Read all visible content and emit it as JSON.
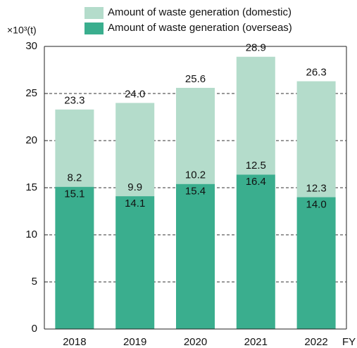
{
  "chart_data": {
    "type": "stacked_bar",
    "y_axis_label": "×10³(t)",
    "x_axis_label": "FY",
    "categories": [
      "2018",
      "2019",
      "2020",
      "2021",
      "2022"
    ],
    "series": [
      {
        "name": "Amount of waste generation (overseas)",
        "color": "#3aae8e",
        "values": [
          15.1,
          14.1,
          15.4,
          16.4,
          14.0
        ],
        "value_labels": [
          "15.1",
          "14.1",
          "15.4",
          "16.4",
          "14.0"
        ]
      },
      {
        "name": "Amount of waste generation (domestic)",
        "color": "#b4dccb",
        "values": [
          8.2,
          9.9,
          10.2,
          12.5,
          12.3
        ],
        "value_labels": [
          "8.2",
          "9.9",
          "10.2",
          "12.5",
          "12.3"
        ]
      }
    ],
    "totals": [
      23.3,
      24.0,
      25.6,
      28.9,
      26.3
    ],
    "total_labels": [
      "23.3",
      "24.0",
      "25.6",
      "28.9",
      "26.3"
    ],
    "ylim": [
      0,
      30
    ],
    "yticks": [
      0,
      5,
      10,
      15,
      20,
      25,
      30
    ],
    "grid": true
  }
}
